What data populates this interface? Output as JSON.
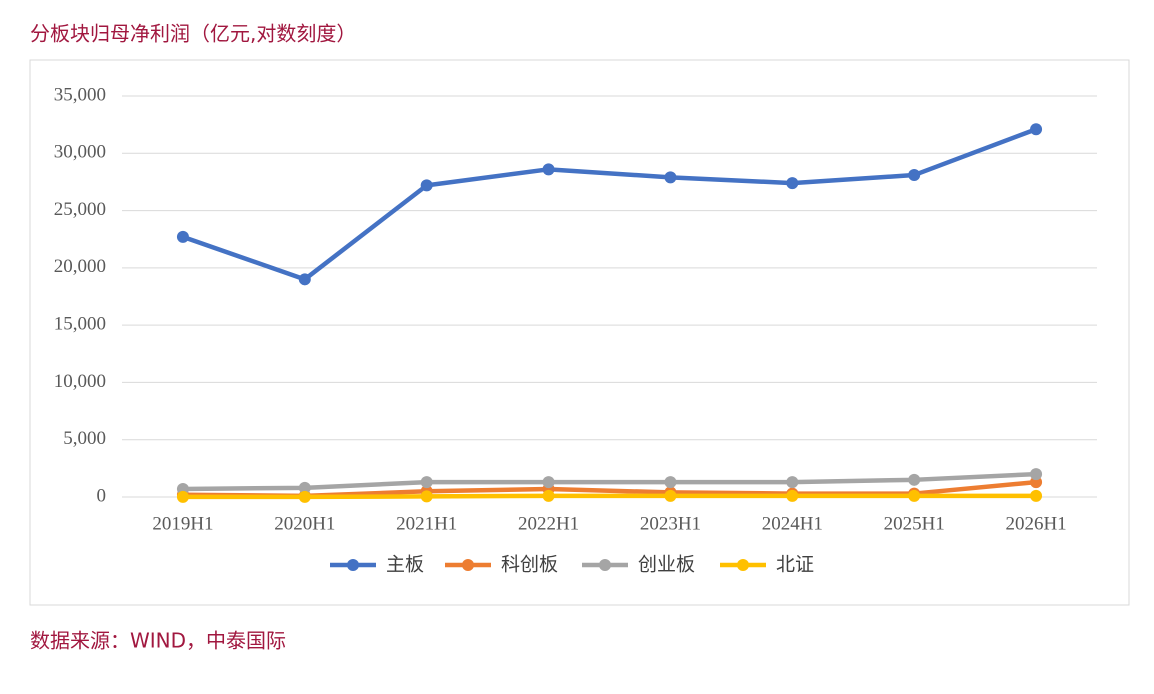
{
  "chart_data": {
    "type": "line",
    "title": "分板块归母净利润（亿元,对数刻度）",
    "source": "数据来源：WIND，中泰国际",
    "categories": [
      "2019H1",
      "2020H1",
      "2021H1",
      "2022H1",
      "2023H1",
      "2024H1",
      "2025H1",
      "2026H1"
    ],
    "series": [
      {
        "name": "主板",
        "color": "#4472c4",
        "values": [
          22700,
          19000,
          27200,
          28600,
          27900,
          27400,
          28100,
          32100
        ]
      },
      {
        "name": "科创板",
        "color": "#ed7d31",
        "values": [
          200,
          100,
          500,
          700,
          400,
          300,
          300,
          1300
        ]
      },
      {
        "name": "创业板",
        "color": "#a5a5a5",
        "values": [
          700,
          800,
          1300,
          1300,
          1300,
          1300,
          1500,
          2000
        ]
      },
      {
        "name": "北证",
        "color": "#ffc000",
        "values": [
          10,
          10,
          50,
          100,
          100,
          100,
          100,
          100
        ]
      }
    ],
    "ylim": [
      0,
      35000
    ],
    "yticks": [
      0,
      {
        "value": 5000,
        "label": "5,000"
      },
      {
        "value": 10000,
        "label": "10,000"
      },
      {
        "value": 15000,
        "label": "15,000"
      },
      {
        "value": 20000,
        "label": "20,000"
      },
      {
        "value": 25000,
        "label": "25,000"
      },
      {
        "value": 30000,
        "label": "30,000"
      },
      {
        "value": 35000,
        "label": "35,000"
      }
    ],
    "grid": true
  }
}
